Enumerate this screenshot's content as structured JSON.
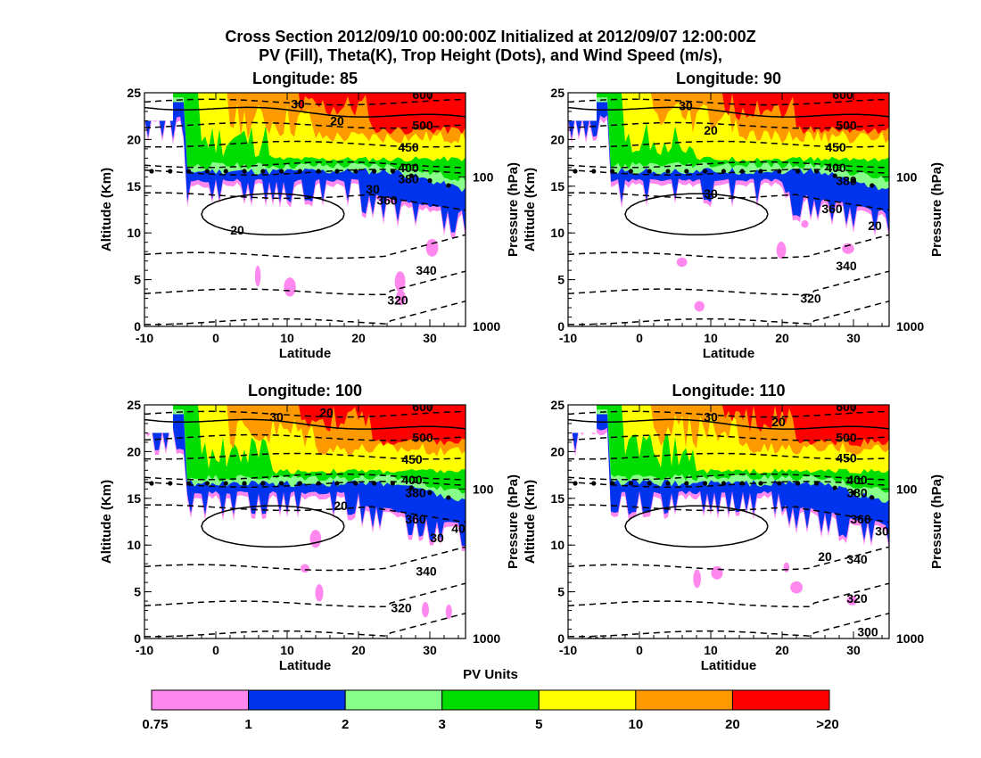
{
  "title_line1": "Cross Section 2012/09/10 00:00:00Z Initialized at 2012/09/07 12:00:00Z",
  "title_line2": "PV (Fill), Theta(K), Trop Height (Dots), and Wind Speed (m/s),",
  "colors": {
    "bin_0.75_1": "#ff88ee",
    "bin_1_2": "#0033ee",
    "bin_2_3": "#88ff88",
    "bin_3_5": "#00dd00",
    "bin_5_10": "#ffff00",
    "bin_10_20": "#ff9900",
    "bin_gt20": "#ff0000"
  },
  "chart_data": [
    {
      "type": "heatmap",
      "title": "Longitude:   85",
      "xlabel": "Latitude",
      "ylabel": "Altitude (Km)",
      "y2label": "Pressure (hPa)",
      "xlim": [
        -10,
        35
      ],
      "ylim": [
        0,
        25
      ],
      "x_ticks": [
        "-10",
        "0",
        "10",
        "20",
        "30"
      ],
      "y_ticks": [
        "0",
        "5",
        "10",
        "15",
        "20",
        "25"
      ],
      "pressure_ticks": [
        {
          "label": "1000",
          "alt": 0
        },
        {
          "label": "100",
          "alt": 16
        }
      ],
      "trop_height_dots_km": 16.6,
      "theta_labels": [
        {
          "text": "600",
          "lat": 29,
          "alt": 24.8
        },
        {
          "text": "500",
          "lat": 29,
          "alt": 21.5
        },
        {
          "text": "450",
          "lat": 27,
          "alt": 19.2
        },
        {
          "text": "400",
          "lat": 27,
          "alt": 17.0
        },
        {
          "text": "380",
          "lat": 27,
          "alt": 15.8
        },
        {
          "text": "360",
          "lat": 24,
          "alt": 13.5
        },
        {
          "text": "340",
          "lat": 29.5,
          "alt": 6.0
        },
        {
          "text": "320",
          "lat": 25.5,
          "alt": 2.8
        }
      ],
      "wind_labels": [
        {
          "text": "30",
          "lat": 11.5,
          "alt": 23.8
        },
        {
          "text": "20",
          "lat": 17,
          "alt": 22.0
        },
        {
          "text": "20",
          "lat": 3,
          "alt": 10.3
        },
        {
          "text": "30",
          "lat": 22,
          "alt": 14.7
        }
      ]
    },
    {
      "type": "heatmap",
      "title": "Longitude:   90",
      "xlabel": "Latitude",
      "ylabel": "Altitude (Km)",
      "y2label": "Pressure (hPa)",
      "xlim": [
        -10,
        35
      ],
      "ylim": [
        0,
        25
      ],
      "x_ticks": [
        "-10",
        "0",
        "10",
        "20",
        "30"
      ],
      "y_ticks": [
        "0",
        "5",
        "10",
        "15",
        "20",
        "25"
      ],
      "pressure_ticks": [
        {
          "label": "1000",
          "alt": 0
        },
        {
          "label": "100",
          "alt": 16
        }
      ],
      "trop_height_dots_km": 16.6,
      "theta_labels": [
        {
          "text": "600",
          "lat": 28.5,
          "alt": 24.8
        },
        {
          "text": "500",
          "lat": 29,
          "alt": 21.5
        },
        {
          "text": "450",
          "lat": 27.5,
          "alt": 19.2
        },
        {
          "text": "400",
          "lat": 27.5,
          "alt": 17.0
        },
        {
          "text": "380",
          "lat": 29,
          "alt": 15.6
        },
        {
          "text": "360",
          "lat": 27,
          "alt": 12.6
        },
        {
          "text": "340",
          "lat": 29,
          "alt": 6.5
        },
        {
          "text": "320",
          "lat": 24,
          "alt": 3.0
        }
      ],
      "wind_labels": [
        {
          "text": "30",
          "lat": 6.5,
          "alt": 23.6
        },
        {
          "text": "20",
          "lat": 10,
          "alt": 21.0
        },
        {
          "text": "30",
          "lat": 10,
          "alt": 14.2
        },
        {
          "text": "20",
          "lat": 33,
          "alt": 10.8
        }
      ]
    },
    {
      "type": "heatmap",
      "title": "Longitude:  100",
      "xlabel": "Latitude",
      "ylabel": "Altitude (Km)",
      "y2label": "Pressure (hPa)",
      "xlim": [
        -10,
        35
      ],
      "ylim": [
        0,
        25
      ],
      "x_ticks": [
        "-10",
        "0",
        "10",
        "20",
        "30"
      ],
      "y_ticks": [
        "0",
        "5",
        "10",
        "15",
        "20",
        "25"
      ],
      "pressure_ticks": [
        {
          "label": "1000",
          "alt": 0
        },
        {
          "label": "100",
          "alt": 16
        }
      ],
      "trop_height_dots_km": 16.6,
      "theta_labels": [
        {
          "text": "600",
          "lat": 29,
          "alt": 24.8
        },
        {
          "text": "500",
          "lat": 29,
          "alt": 21.5
        },
        {
          "text": "450",
          "lat": 27.5,
          "alt": 19.2
        },
        {
          "text": "400",
          "lat": 27.5,
          "alt": 17.0
        },
        {
          "text": "380",
          "lat": 28,
          "alt": 15.6
        },
        {
          "text": "360",
          "lat": 28,
          "alt": 12.8
        },
        {
          "text": "340",
          "lat": 29.5,
          "alt": 7.2
        },
        {
          "text": "320",
          "lat": 26,
          "alt": 3.3
        }
      ],
      "wind_labels": [
        {
          "text": "30",
          "lat": 8.5,
          "alt": 23.7
        },
        {
          "text": "20",
          "lat": 15.5,
          "alt": 24.2
        },
        {
          "text": "20",
          "lat": 17.5,
          "alt": 14.2
        },
        {
          "text": "30",
          "lat": 31,
          "alt": 10.8
        },
        {
          "text": "40",
          "lat": 34,
          "alt": 11.8
        }
      ]
    },
    {
      "type": "heatmap",
      "title": "Longitude:  110",
      "xlabel": "Latitidue",
      "ylabel": "Altitude (Km)",
      "y2label": "Pressure (hPa)",
      "xlim": [
        -10,
        35
      ],
      "ylim": [
        0,
        25
      ],
      "x_ticks": [
        "-10",
        "0",
        "10",
        "20",
        "30"
      ],
      "y_ticks": [
        "0",
        "5",
        "10",
        "15",
        "20",
        "25"
      ],
      "pressure_ticks": [
        {
          "label": "1000",
          "alt": 0
        },
        {
          "label": "100",
          "alt": 16
        }
      ],
      "trop_height_dots_km": 16.6,
      "theta_labels": [
        {
          "text": "600",
          "lat": 29,
          "alt": 24.8
        },
        {
          "text": "500",
          "lat": 29,
          "alt": 21.5
        },
        {
          "text": "450",
          "lat": 29,
          "alt": 19.3
        },
        {
          "text": "400",
          "lat": 30.5,
          "alt": 17.0
        },
        {
          "text": "380",
          "lat": 30.5,
          "alt": 15.6
        },
        {
          "text": "360",
          "lat": 31,
          "alt": 12.8
        },
        {
          "text": "340",
          "lat": 30.5,
          "alt": 8.5
        },
        {
          "text": "320",
          "lat": 30.5,
          "alt": 4.3
        },
        {
          "text": "300",
          "lat": -6,
          "alt": -0.3
        },
        {
          "text": "300",
          "lat": 32,
          "alt": 0.7
        }
      ],
      "wind_labels": [
        {
          "text": "30",
          "lat": 10,
          "alt": 23.7
        },
        {
          "text": "20",
          "lat": 19.5,
          "alt": 23.2
        },
        {
          "text": "20",
          "lat": 26,
          "alt": 8.8
        },
        {
          "text": "30",
          "lat": 34,
          "alt": 11.5
        }
      ]
    }
  ],
  "colorbar": {
    "title": "PV Units",
    "labels": [
      "0.75",
      "1",
      "2",
      "3",
      "5",
      "10",
      "20",
      ">20"
    ]
  }
}
